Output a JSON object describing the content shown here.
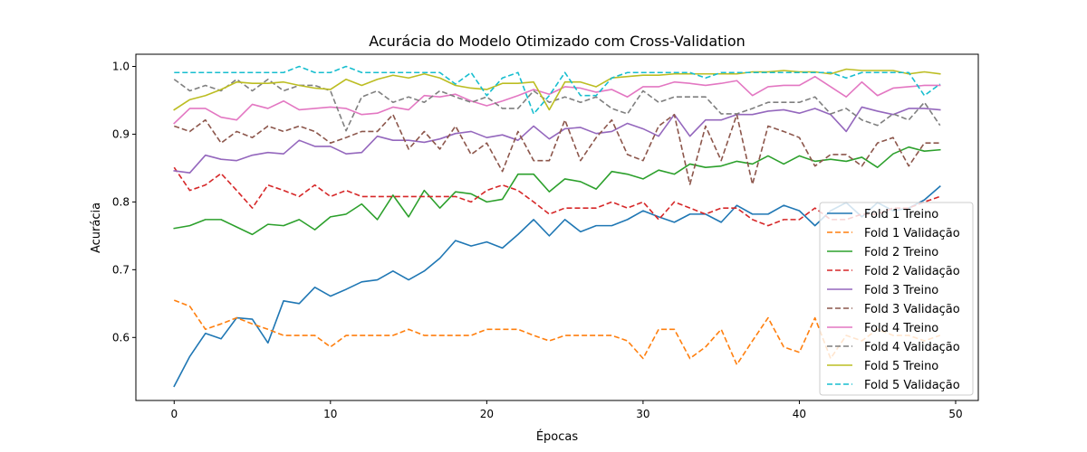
{
  "chart_data": {
    "type": "line",
    "title": "Acurácia do Modelo Otimizado com Cross-Validation",
    "xlabel": "Épocas",
    "ylabel": "Acurácia",
    "xlim": [
      -2.45,
      51.45
    ],
    "ylim": [
      0.507,
      1.018
    ],
    "xticks": [
      0,
      10,
      20,
      30,
      40,
      50
    ],
    "yticks": [
      0.6,
      0.7,
      0.8,
      0.9,
      1.0
    ],
    "xtick_labels": [
      "0",
      "10",
      "20",
      "30",
      "40",
      "50"
    ],
    "ytick_labels": [
      "0.6",
      "0.7",
      "0.8",
      "0.9",
      "1.0"
    ],
    "grid": false,
    "legend_position": "bottom-right",
    "x": [
      0,
      1,
      2,
      3,
      4,
      5,
      6,
      7,
      8,
      9,
      10,
      11,
      12,
      13,
      14,
      15,
      16,
      17,
      18,
      19,
      20,
      21,
      22,
      23,
      24,
      25,
      26,
      27,
      28,
      29,
      30,
      31,
      32,
      33,
      34,
      35,
      36,
      37,
      38,
      39,
      40,
      41,
      42,
      43,
      44,
      45,
      46,
      47,
      48,
      49
    ],
    "series": [
      {
        "name": "Fold 1 Treino",
        "color": "#1f77b4",
        "dash": "solid",
        "values": [
          0.528,
          0.572,
          0.606,
          0.598,
          0.629,
          0.627,
          0.592,
          0.654,
          0.65,
          0.674,
          0.661,
          0.671,
          0.682,
          0.685,
          0.698,
          0.685,
          0.698,
          0.717,
          0.743,
          0.735,
          0.741,
          0.732,
          0.752,
          0.774,
          0.75,
          0.774,
          0.756,
          0.765,
          0.765,
          0.774,
          0.787,
          0.778,
          0.77,
          0.782,
          0.782,
          0.77,
          0.795,
          0.782,
          0.782,
          0.795,
          0.787,
          0.765,
          0.787,
          0.799,
          0.778,
          0.799,
          0.787,
          0.791,
          0.803,
          0.823
        ]
      },
      {
        "name": "Fold 1 Validação",
        "color": "#ff7f0e",
        "dash": "dashed",
        "values": [
          0.655,
          0.646,
          0.612,
          0.62,
          0.629,
          0.62,
          0.612,
          0.603,
          0.603,
          0.603,
          0.586,
          0.603,
          0.603,
          0.603,
          0.603,
          0.612,
          0.603,
          0.603,
          0.603,
          0.603,
          0.612,
          0.612,
          0.612,
          0.603,
          0.595,
          0.603,
          0.603,
          0.603,
          0.603,
          0.595,
          0.569,
          0.612,
          0.612,
          0.569,
          0.586,
          0.612,
          0.56,
          0.595,
          0.629,
          0.586,
          0.578,
          0.629,
          0.569,
          0.603,
          0.595,
          0.612,
          0.603,
          0.603,
          0.595,
          0.603
        ]
      },
      {
        "name": "Fold 2 Treino",
        "color": "#2ca02c",
        "dash": "solid",
        "values": [
          0.761,
          0.765,
          0.774,
          0.774,
          0.763,
          0.752,
          0.767,
          0.765,
          0.774,
          0.759,
          0.778,
          0.782,
          0.797,
          0.774,
          0.81,
          0.778,
          0.817,
          0.791,
          0.815,
          0.812,
          0.8,
          0.804,
          0.841,
          0.841,
          0.815,
          0.834,
          0.83,
          0.819,
          0.845,
          0.841,
          0.834,
          0.847,
          0.841,
          0.856,
          0.851,
          0.853,
          0.86,
          0.856,
          0.868,
          0.856,
          0.868,
          0.86,
          0.863,
          0.86,
          0.866,
          0.851,
          0.871,
          0.881,
          0.875,
          0.877
        ]
      },
      {
        "name": "Fold 2 Validação",
        "color": "#d62728",
        "dash": "dashed",
        "values": [
          0.851,
          0.817,
          0.825,
          0.842,
          0.817,
          0.791,
          0.825,
          0.817,
          0.808,
          0.825,
          0.808,
          0.817,
          0.808,
          0.808,
          0.808,
          0.808,
          0.808,
          0.808,
          0.808,
          0.8,
          0.817,
          0.825,
          0.817,
          0.8,
          0.782,
          0.791,
          0.791,
          0.791,
          0.8,
          0.791,
          0.8,
          0.774,
          0.8,
          0.791,
          0.782,
          0.791,
          0.791,
          0.774,
          0.765,
          0.774,
          0.774,
          0.791,
          0.774,
          0.774,
          0.782,
          0.782,
          0.791,
          0.791,
          0.8,
          0.808
        ]
      },
      {
        "name": "Fold 3 Treino",
        "color": "#9467bd",
        "dash": "solid",
        "values": [
          0.846,
          0.843,
          0.869,
          0.863,
          0.861,
          0.869,
          0.873,
          0.871,
          0.891,
          0.882,
          0.882,
          0.871,
          0.873,
          0.897,
          0.891,
          0.891,
          0.888,
          0.893,
          0.901,
          0.904,
          0.895,
          0.899,
          0.891,
          0.912,
          0.893,
          0.908,
          0.91,
          0.901,
          0.904,
          0.916,
          0.908,
          0.897,
          0.929,
          0.897,
          0.921,
          0.921,
          0.929,
          0.929,
          0.934,
          0.936,
          0.931,
          0.938,
          0.929,
          0.904,
          0.94,
          0.934,
          0.929,
          0.938,
          0.938,
          0.936
        ]
      },
      {
        "name": "Fold 3 Validação",
        "color": "#8c564b",
        "dash": "dashed",
        "values": [
          0.912,
          0.904,
          0.921,
          0.887,
          0.904,
          0.895,
          0.912,
          0.904,
          0.912,
          0.904,
          0.887,
          0.895,
          0.904,
          0.904,
          0.929,
          0.878,
          0.904,
          0.878,
          0.912,
          0.87,
          0.887,
          0.845,
          0.904,
          0.861,
          0.861,
          0.921,
          0.861,
          0.895,
          0.921,
          0.87,
          0.861,
          0.912,
          0.929,
          0.826,
          0.912,
          0.861,
          0.929,
          0.826,
          0.912,
          0.904,
          0.895,
          0.853,
          0.87,
          0.87,
          0.853,
          0.887,
          0.895,
          0.853,
          0.887,
          0.887
        ]
      },
      {
        "name": "Fold 4 Treino",
        "color": "#e377c2",
        "dash": "solid",
        "values": [
          0.916,
          0.938,
          0.938,
          0.925,
          0.921,
          0.944,
          0.938,
          0.949,
          0.936,
          0.938,
          0.94,
          0.938,
          0.929,
          0.931,
          0.94,
          0.936,
          0.957,
          0.955,
          0.959,
          0.949,
          0.942,
          0.949,
          0.957,
          0.966,
          0.959,
          0.97,
          0.968,
          0.962,
          0.966,
          0.955,
          0.97,
          0.97,
          0.977,
          0.975,
          0.972,
          0.975,
          0.979,
          0.957,
          0.97,
          0.972,
          0.972,
          0.985,
          0.97,
          0.955,
          0.977,
          0.957,
          0.968,
          0.97,
          0.972,
          0.972
        ]
      },
      {
        "name": "Fold 4 Validação",
        "color": "#7f7f7f",
        "dash": "dashed",
        "values": [
          0.981,
          0.964,
          0.972,
          0.964,
          0.981,
          0.964,
          0.981,
          0.964,
          0.972,
          0.972,
          0.964,
          0.905,
          0.955,
          0.964,
          0.947,
          0.955,
          0.947,
          0.964,
          0.955,
          0.947,
          0.955,
          0.938,
          0.938,
          0.964,
          0.947,
          0.955,
          0.947,
          0.955,
          0.938,
          0.93,
          0.964,
          0.947,
          0.955,
          0.955,
          0.955,
          0.93,
          0.93,
          0.938,
          0.947,
          0.947,
          0.947,
          0.955,
          0.93,
          0.938,
          0.921,
          0.913,
          0.93,
          0.921,
          0.947,
          0.913
        ]
      },
      {
        "name": "Fold 5 Treino",
        "color": "#bcbd22",
        "dash": "solid",
        "values": [
          0.936,
          0.951,
          0.957,
          0.966,
          0.977,
          0.975,
          0.975,
          0.977,
          0.972,
          0.968,
          0.966,
          0.981,
          0.972,
          0.981,
          0.987,
          0.983,
          0.989,
          0.983,
          0.972,
          0.968,
          0.966,
          0.975,
          0.975,
          0.977,
          0.936,
          0.977,
          0.977,
          0.97,
          0.983,
          0.985,
          0.987,
          0.987,
          0.989,
          0.989,
          0.989,
          0.989,
          0.989,
          0.992,
          0.992,
          0.994,
          0.992,
          0.992,
          0.989,
          0.996,
          0.994,
          0.994,
          0.994,
          0.989,
          0.992,
          0.989
        ]
      },
      {
        "name": "Fold 5 Validação",
        "color": "#17becf",
        "dash": "dashed",
        "values": [
          0.991,
          0.991,
          0.991,
          0.991,
          0.991,
          0.991,
          0.991,
          0.991,
          1.0,
          0.991,
          0.991,
          1.0,
          0.991,
          0.991,
          0.991,
          0.991,
          0.991,
          0.991,
          0.974,
          0.991,
          0.957,
          0.983,
          0.991,
          0.93,
          0.957,
          0.991,
          0.957,
          0.957,
          0.983,
          0.991,
          0.991,
          0.991,
          0.991,
          0.991,
          0.983,
          0.991,
          0.991,
          0.991,
          0.991,
          0.991,
          0.991,
          0.991,
          0.991,
          0.983,
          0.991,
          0.991,
          0.991,
          0.991,
          0.957,
          0.974
        ]
      }
    ]
  }
}
